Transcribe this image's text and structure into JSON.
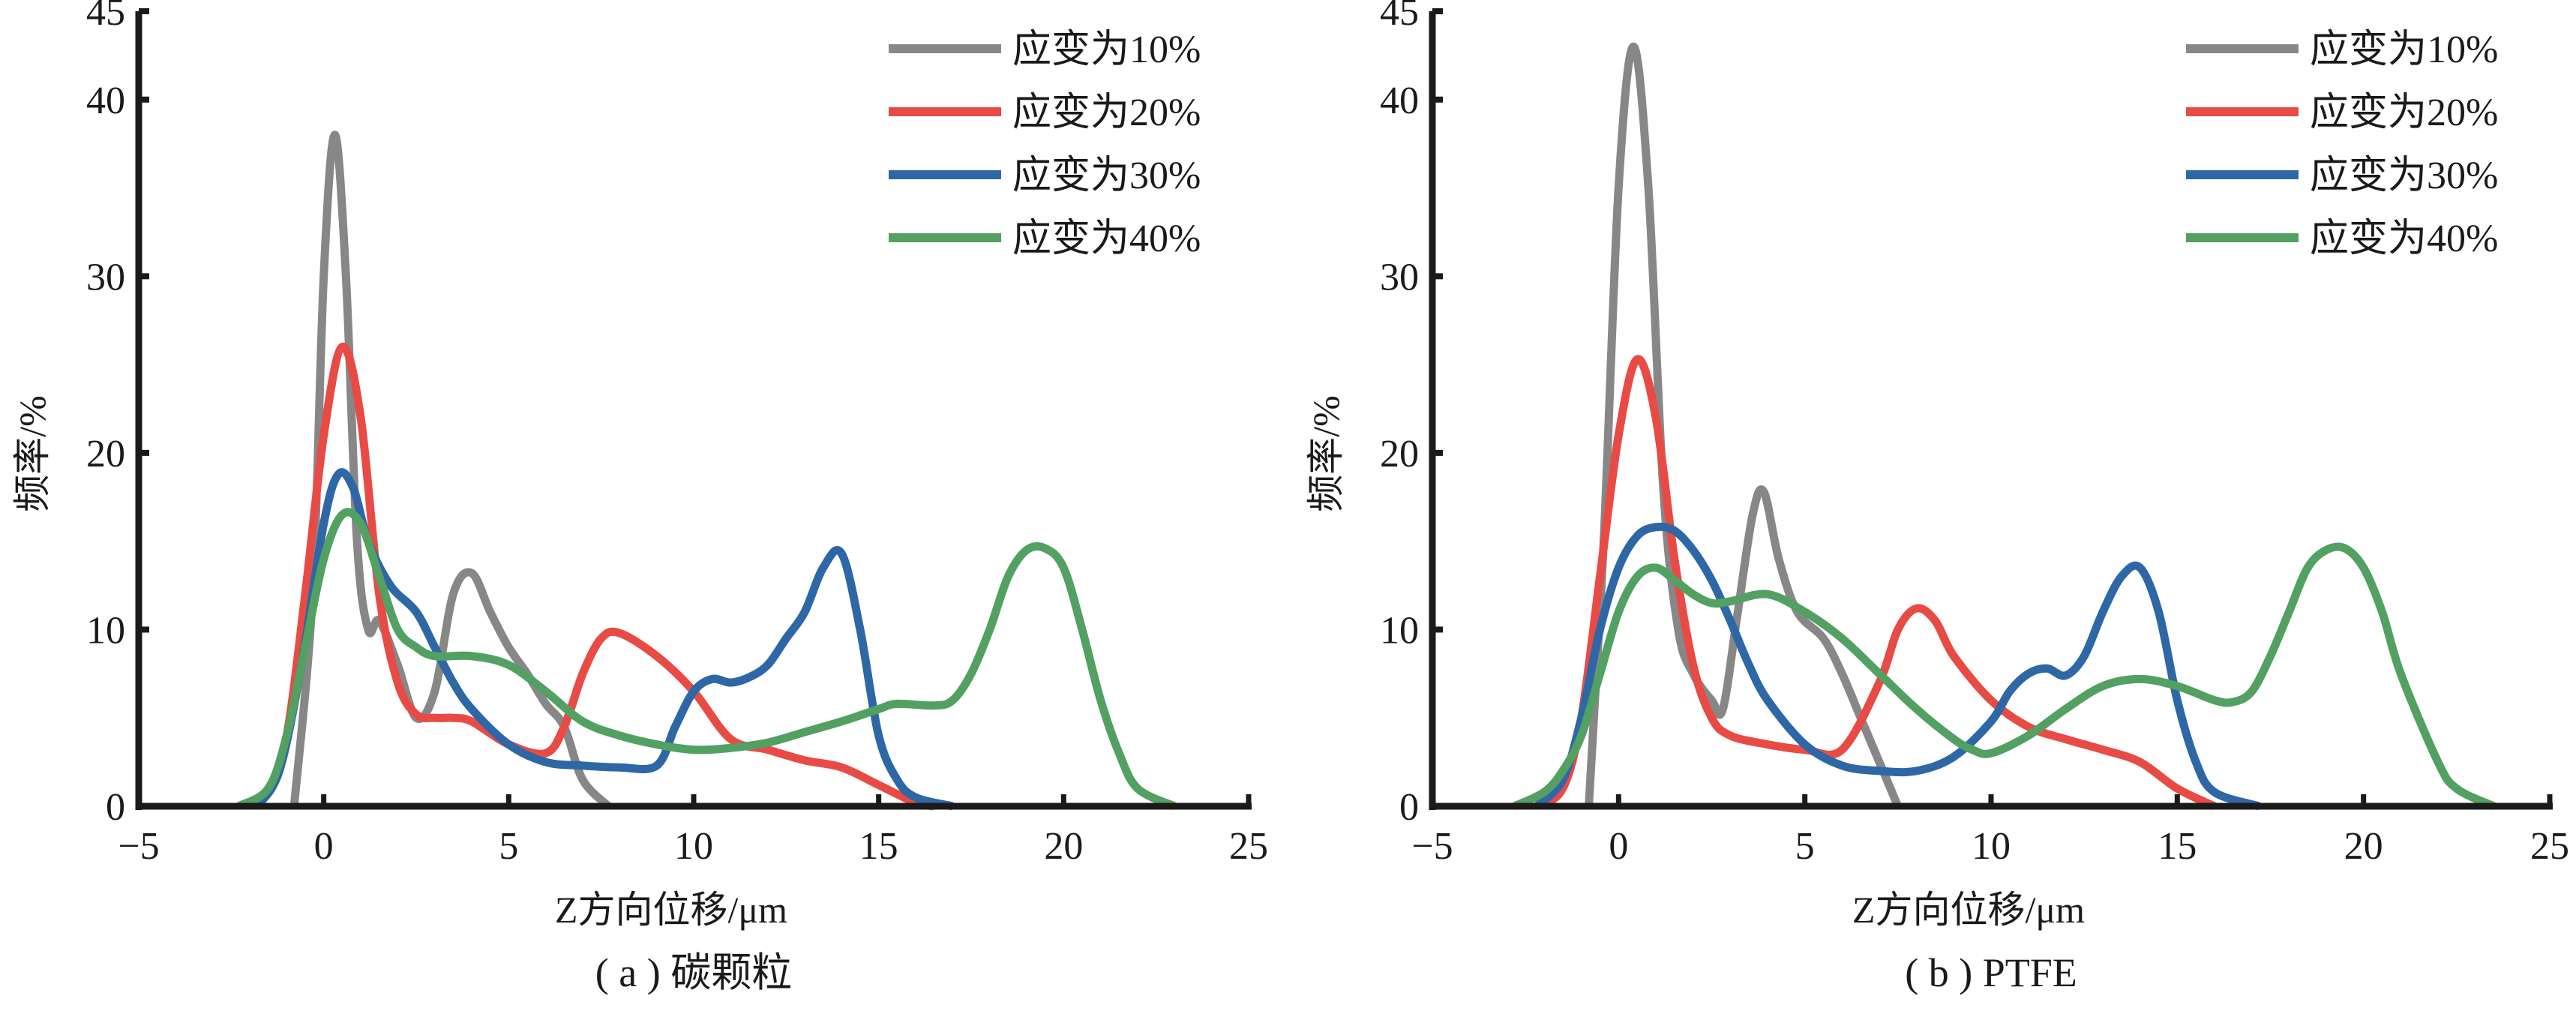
{
  "colors": {
    "axis": "#1a1a1a",
    "strain_10": "#878787",
    "strain_20": "#E84B45",
    "strain_30": "#2E67A5",
    "strain_40": "#52A062"
  },
  "chart_data": [
    {
      "type": "line",
      "caption": "( a ) 碳颗粒",
      "xlabel": "Z方向位移/μm",
      "ylabel": "频率/%",
      "xlim": [
        -5,
        25
      ],
      "ylim": [
        0,
        45
      ],
      "xticks": [
        -5,
        0,
        5,
        10,
        15,
        20,
        25
      ],
      "xtick_labels": [
        "−5",
        "0",
        "5",
        "10",
        "15",
        "20",
        "25"
      ],
      "yticks": [
        0,
        10,
        20,
        30,
        40,
        45
      ],
      "ytick_labels": [
        "0",
        "10",
        "20",
        "30",
        "40",
        "45"
      ],
      "grid": false,
      "legend_position": "top-right",
      "series": [
        {
          "name": "应变为10%",
          "color_key": "strain_10",
          "x": [
            -0.8,
            -0.3,
            0.0,
            0.3,
            0.6,
            0.9,
            1.2,
            1.5,
            2.0,
            2.5,
            3.0,
            3.5,
            4.0,
            4.5,
            5.0,
            5.5,
            6.0,
            6.5,
            7.0,
            7.7
          ],
          "y": [
            0,
            12,
            30,
            38,
            30,
            15,
            10,
            10.5,
            8,
            5,
            6.5,
            12,
            13.2,
            11,
            9,
            7.5,
            5.8,
            4.5,
            1.5,
            0
          ]
        },
        {
          "name": "应变为20%",
          "color_key": "strain_20",
          "x": [
            -2.0,
            -1.5,
            -1.0,
            -0.5,
            0.0,
            0.5,
            1.0,
            1.5,
            2.0,
            2.5,
            3.0,
            3.5,
            4.0,
            5.0,
            6.0,
            6.5,
            7.0,
            7.5,
            8.0,
            9.0,
            10.0,
            11.0,
            12.0,
            13.0,
            14.0,
            15.0,
            16.0,
            16.5
          ],
          "y": [
            0,
            0.8,
            4,
            12,
            21,
            26,
            22,
            12,
            7,
            5.2,
            5,
            5,
            4.8,
            3.5,
            3.0,
            4.5,
            7.5,
            9.5,
            9.8,
            8.5,
            6.5,
            3.8,
            3.2,
            2.6,
            2.2,
            1.2,
            0.2,
            0
          ]
        },
        {
          "name": "应变为30%",
          "color_key": "strain_30",
          "x": [
            -1.8,
            -1.2,
            -0.6,
            0.0,
            0.4,
            0.8,
            1.2,
            1.8,
            2.5,
            3.0,
            3.5,
            4.0,
            5.0,
            6.0,
            7.0,
            8.0,
            9.0,
            9.5,
            10.0,
            10.5,
            11.0,
            11.5,
            12.0,
            12.5,
            13.0,
            13.5,
            14.0,
            14.5,
            15.0,
            15.5,
            16.0,
            17.0
          ],
          "y": [
            0,
            2,
            8,
            16,
            18.8,
            18,
            15,
            12.5,
            11,
            9,
            7,
            5.5,
            3.5,
            2.5,
            2.3,
            2.2,
            2.3,
            4.5,
            6.5,
            7.2,
            7.0,
            7.3,
            8.0,
            9.5,
            11,
            13.5,
            14.3,
            10,
            4,
            1.5,
            0.5,
            0
          ]
        },
        {
          "name": "应变为40%",
          "color_key": "strain_40",
          "x": [
            -2.3,
            -1.5,
            -1.0,
            -0.5,
            0.0,
            0.5,
            1.0,
            1.5,
            2.0,
            2.5,
            3.0,
            4.0,
            5.0,
            6.0,
            7.0,
            8.0,
            9.0,
            10.0,
            11.0,
            12.0,
            13.0,
            14.0,
            15.0,
            15.5,
            16.5,
            17.0,
            17.5,
            18.0,
            18.5,
            19.0,
            19.5,
            20.0,
            20.5,
            21.0,
            21.5,
            22.0,
            23.0
          ],
          "y": [
            0,
            1,
            4,
            9,
            14,
            16.5,
            16,
            13,
            10,
            9,
            8.5,
            8.5,
            8.0,
            6.5,
            4.8,
            4.0,
            3.5,
            3.2,
            3.3,
            3.6,
            4.2,
            4.8,
            5.5,
            5.8,
            5.7,
            6.0,
            7.5,
            10,
            13,
            14.5,
            14.6,
            13.5,
            10,
            6,
            3,
            1,
            0
          ]
        }
      ]
    },
    {
      "type": "line",
      "caption": "( b ) PTFE",
      "xlabel": "Z方向位移/μm",
      "ylabel": "频率/%",
      "xlim": [
        -5,
        25
      ],
      "ylim": [
        0,
        45
      ],
      "xticks": [
        -5,
        0,
        5,
        10,
        15,
        20,
        25
      ],
      "xtick_labels": [
        "−5",
        "0",
        "5",
        "10",
        "15",
        "20",
        "25"
      ],
      "yticks": [
        0,
        10,
        20,
        30,
        40,
        45
      ],
      "ytick_labels": [
        "0",
        "10",
        "20",
        "30",
        "40",
        "45"
      ],
      "grid": false,
      "legend_position": "top-right",
      "series": [
        {
          "name": "应变为10%",
          "color_key": "strain_10",
          "x": [
            -0.8,
            -0.4,
            0.0,
            0.4,
            0.8,
            1.2,
            1.6,
            2.0,
            2.5,
            2.8,
            3.2,
            3.6,
            3.9,
            4.3,
            4.8,
            5.5,
            6.0,
            6.5,
            7.0,
            7.5
          ],
          "y": [
            0,
            15,
            35,
            43,
            35,
            18,
            10,
            7.5,
            6,
            5.5,
            11,
            16.5,
            17.8,
            14,
            11,
            9.5,
            7.5,
            5,
            2.5,
            0
          ]
        },
        {
          "name": "应变为20%",
          "color_key": "strain_20",
          "x": [
            -2.2,
            -1.5,
            -1.0,
            -0.5,
            0.0,
            0.5,
            1.0,
            1.5,
            2.0,
            2.5,
            3.0,
            4.0,
            5.0,
            6.0,
            7.0,
            7.5,
            8.0,
            8.5,
            9.0,
            10.0,
            11.0,
            12.0,
            13.0,
            14.0,
            15.0,
            16.0
          ],
          "y": [
            0,
            1,
            5,
            13,
            21,
            25.3,
            22,
            14,
            8,
            5,
            4,
            3.5,
            3.2,
            3.2,
            7,
            10,
            11.2,
            10.5,
            8.5,
            6,
            4.5,
            3.8,
            3.2,
            2.5,
            1,
            0
          ]
        },
        {
          "name": "应变为30%",
          "color_key": "strain_30",
          "x": [
            -2.2,
            -1.5,
            -1.0,
            -0.5,
            0.0,
            0.5,
            1.0,
            1.5,
            2.0,
            2.5,
            3.0,
            3.5,
            4.0,
            5.0,
            6.0,
            7.0,
            8.0,
            9.0,
            10.0,
            10.5,
            11.0,
            11.5,
            12.0,
            12.5,
            13.0,
            13.5,
            14.0,
            14.5,
            15.0,
            15.5,
            16.0,
            17.2
          ],
          "y": [
            0,
            1.5,
            5,
            10,
            13.5,
            15.3,
            15.8,
            15.6,
            14.5,
            12.8,
            10.5,
            8,
            6,
            3.5,
            2.3,
            2.0,
            2.0,
            2.8,
            4.8,
            6.5,
            7.5,
            7.8,
            7.4,
            8.5,
            11,
            13,
            13.5,
            11,
            6,
            2.5,
            0.8,
            0
          ]
        },
        {
          "name": "应变为40%",
          "color_key": "strain_40",
          "x": [
            -2.8,
            -2.0,
            -1.5,
            -1.0,
            -0.5,
            0.0,
            0.5,
            1.0,
            1.5,
            2.0,
            2.5,
            3.0,
            4.0,
            5.0,
            6.0,
            7.0,
            8.0,
            9.0,
            9.5,
            10.0,
            11.0,
            12.0,
            13.0,
            14.0,
            15.0,
            16.0,
            16.5,
            17.0,
            17.5,
            18.0,
            18.5,
            19.0,
            19.5,
            20.0,
            20.5,
            21.0,
            22.0,
            22.5,
            23.5
          ],
          "y": [
            0,
            0.8,
            2,
            4,
            7.5,
            11,
            13,
            13.5,
            12.8,
            12,
            11.5,
            11.6,
            12,
            11,
            9.5,
            7.5,
            5.5,
            3.8,
            3.2,
            3.0,
            4.0,
            5.5,
            6.8,
            7.2,
            6.8,
            6.0,
            5.9,
            6.5,
            8.5,
            11,
            13.5,
            14.5,
            14.6,
            13.5,
            11,
            7.5,
            2.5,
            1,
            0
          ]
        }
      ]
    }
  ]
}
